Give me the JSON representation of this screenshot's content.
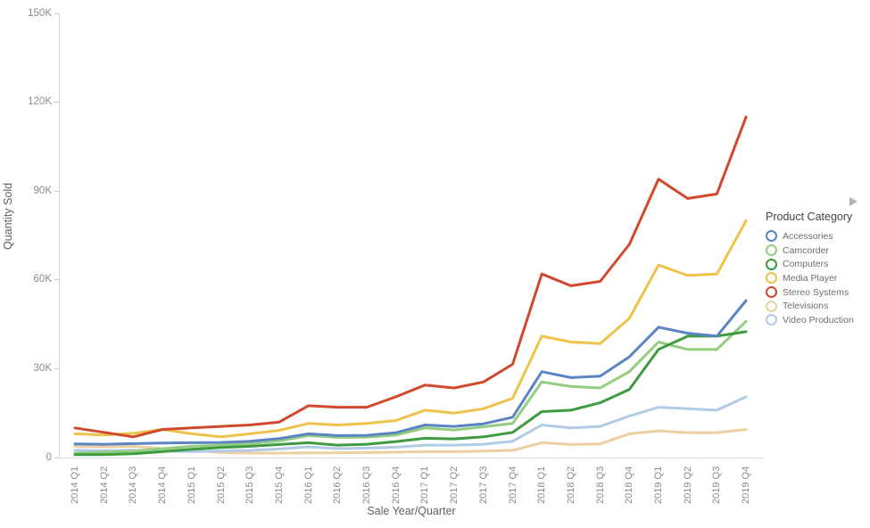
{
  "figure": {
    "y_axis": {
      "title": "Quantity Sold",
      "tick_labels": [
        "0",
        "30K",
        "60K",
        "90K",
        "120K",
        "150K"
      ],
      "tick_values_k": [
        0,
        30,
        60,
        90,
        120,
        150
      ]
    },
    "x_axis": {
      "title": "Sale Year/Quarter"
    },
    "legend": {
      "title": "Product Category",
      "scroll_arrow_icon": "right-triangle"
    }
  },
  "chart_data": {
    "type": "line",
    "title": "",
    "xlabel": "Sale Year/Quarter",
    "ylabel": "Quantity Sold",
    "ylim": [
      0,
      150000
    ],
    "values_unit": "thousands (K) of quantity sold",
    "grid": false,
    "legend_position": "right",
    "legend_title": "Product Category",
    "categories": [
      "2014 Q1",
      "2014 Q2",
      "2014 Q3",
      "2014 Q4",
      "2015 Q1",
      "2015 Q2",
      "2015 Q3",
      "2015 Q4",
      "2016 Q1",
      "2016 Q2",
      "2016 Q3",
      "2016 Q4",
      "2017 Q1",
      "2017 Q2",
      "2017 Q3",
      "2017 Q4",
      "2018 Q1",
      "2018 Q2",
      "2018 Q3",
      "2018 Q4",
      "2019 Q1",
      "2019 Q2",
      "2019 Q3",
      "2019 Q4"
    ],
    "series": [
      {
        "name": "Accessories",
        "color": "#5b84c4",
        "values_k": [
          4.6,
          4.5,
          4.7,
          4.9,
          5.0,
          5.1,
          5.5,
          6.4,
          8.0,
          7.4,
          7.5,
          8.4,
          11.0,
          10.5,
          11.4,
          13.6,
          29.0,
          27.0,
          27.5,
          34.0,
          44.0,
          42.0,
          41.0,
          53.0
        ]
      },
      {
        "name": "Camcorder",
        "color": "#93cd7f",
        "values_k": [
          1.5,
          1.8,
          2.2,
          3.0,
          3.8,
          4.2,
          4.7,
          5.6,
          7.4,
          6.8,
          6.9,
          7.6,
          10.0,
          9.3,
          10.4,
          11.5,
          25.5,
          24.0,
          23.5,
          29.0,
          39.0,
          36.5,
          36.5,
          46.0
        ]
      },
      {
        "name": "Computers",
        "color": "#3d9b40",
        "values_k": [
          1.0,
          1.0,
          1.3,
          2.0,
          2.8,
          3.4,
          3.8,
          4.4,
          5.0,
          4.2,
          4.5,
          5.4,
          6.5,
          6.3,
          7.0,
          8.5,
          15.5,
          16.0,
          18.5,
          23.0,
          36.5,
          41.0,
          41.0,
          42.5
        ]
      },
      {
        "name": "Media Player",
        "color": "#efc34b",
        "values_k": [
          8.0,
          7.6,
          8.2,
          9.5,
          8.0,
          7.0,
          8.0,
          9.2,
          11.5,
          11.0,
          11.5,
          12.5,
          16.0,
          15.0,
          16.5,
          20.0,
          41.0,
          39.0,
          38.5,
          47.0,
          65.0,
          61.5,
          62.0,
          80.0
        ]
      },
      {
        "name": "Stereo Systems",
        "color": "#d1492c",
        "values_k": [
          10.0,
          8.5,
          7.0,
          9.5,
          10.0,
          10.5,
          11.0,
          12.0,
          17.5,
          17.0,
          17.0,
          20.5,
          24.5,
          23.5,
          25.5,
          31.5,
          62.0,
          58.0,
          59.5,
          72.0,
          94.0,
          87.5,
          89.0,
          115.0
        ]
      },
      {
        "name": "Televisions",
        "color": "#eccfa2",
        "values_k": [
          3.8,
          3.6,
          3.8,
          3.0,
          2.5,
          1.7,
          1.5,
          1.5,
          1.6,
          1.6,
          1.7,
          1.8,
          2.0,
          2.0,
          2.2,
          2.4,
          5.0,
          4.4,
          4.6,
          8.0,
          9.0,
          8.4,
          8.4,
          9.5
        ]
      },
      {
        "name": "Video Production",
        "color": "#b1cbe6",
        "values_k": [
          2.5,
          2.3,
          2.5,
          2.2,
          2.0,
          2.2,
          2.4,
          2.9,
          3.6,
          3.0,
          3.2,
          3.5,
          4.2,
          4.2,
          4.5,
          5.5,
          11.0,
          10.0,
          10.5,
          14.0,
          17.0,
          16.5,
          16.0,
          20.5
        ]
      }
    ],
    "draw_order": [
      "Televisions",
      "Video Production",
      "Camcorder",
      "Computers",
      "Accessories",
      "Media Player",
      "Stereo Systems"
    ]
  }
}
